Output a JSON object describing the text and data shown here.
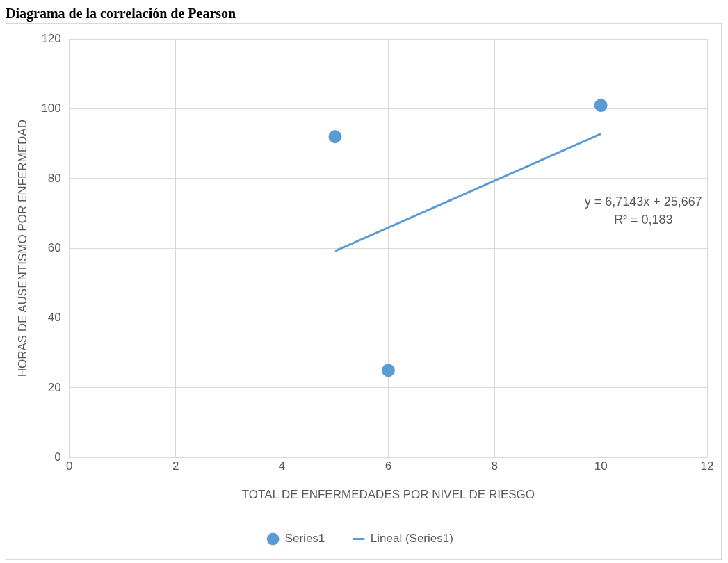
{
  "chart_data": {
    "type": "scatter",
    "title": "Diagrama de la correlación de Pearson",
    "xlabel": "TOTAL DE ENFERMEDADES POR NIVEL DE RIESGO",
    "ylabel": "HORAS DE AUSENTISMO POR ENFERMEDAD",
    "series": [
      {
        "name": "Series1",
        "type": "scatter",
        "color": "#5b9bd5",
        "marker": "circle",
        "x": [
          5,
          6,
          10
        ],
        "values": [
          92,
          25,
          101
        ]
      },
      {
        "name": "Lineal (Series1)",
        "type": "line",
        "color": "#5b9bd5",
        "marker": "none",
        "x": [
          5,
          10
        ],
        "values": [
          59.2,
          92.8
        ]
      }
    ],
    "annotations": [
      "y = 6,7143x + 25,667",
      "R² = 0,183"
    ],
    "xlim": [
      0,
      12
    ],
    "xticks": [
      0,
      2,
      4,
      6,
      8,
      10,
      12
    ],
    "ylim": [
      0,
      120
    ],
    "yticks": [
      0,
      20,
      40,
      60,
      80,
      100,
      120
    ],
    "grid": true,
    "legend": "bottom",
    "line_style": "solid"
  }
}
